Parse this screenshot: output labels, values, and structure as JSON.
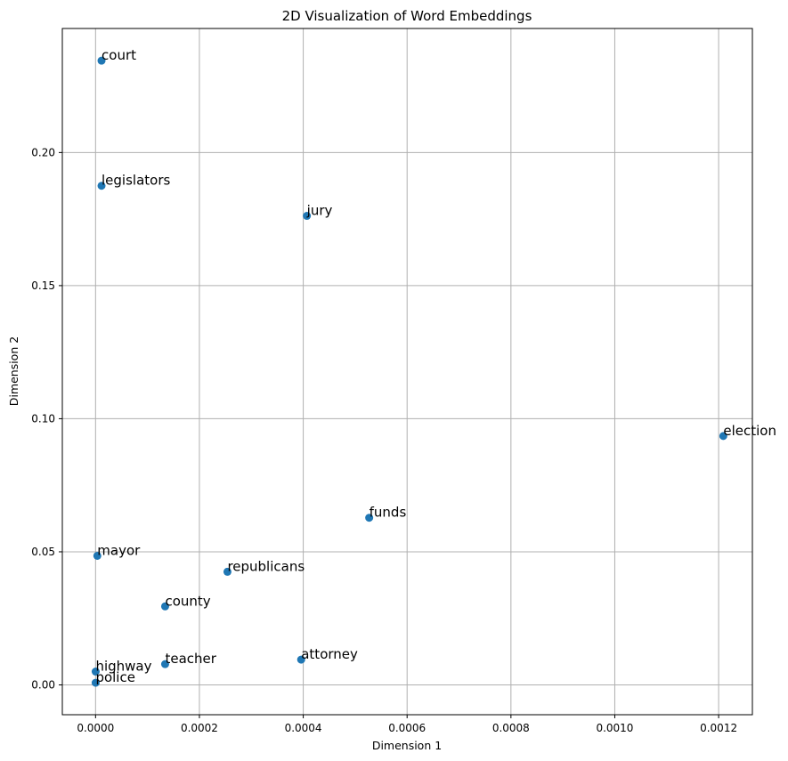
{
  "chart_data": {
    "type": "scatter",
    "title": "2D Visualization of Word Embeddings",
    "xlabel": "Dimension 1",
    "ylabel": "Dimension 2",
    "xlim": [
      -6.4e-05,
      0.001265
    ],
    "ylim": [
      -0.0112,
      0.2466
    ],
    "xticks": [
      0.0,
      0.0002,
      0.0004,
      0.0006,
      0.0008,
      0.001,
      0.0012
    ],
    "xtick_labels": [
      "0.0000",
      "0.0002",
      "0.0004",
      "0.0006",
      "0.0008",
      "0.0010",
      "0.0012"
    ],
    "yticks": [
      0.0,
      0.05,
      0.1,
      0.15,
      0.2
    ],
    "ytick_labels": [
      "0.00",
      "0.05",
      "0.10",
      "0.15",
      "0.20"
    ],
    "grid": true,
    "point_color": "#1f77b4",
    "points": [
      {
        "label": "court",
        "x": 1.15e-05,
        "y": 0.2345
      },
      {
        "label": "legislators",
        "x": 1.15e-05,
        "y": 0.1875
      },
      {
        "label": "jury",
        "x": 0.000407,
        "y": 0.1762
      },
      {
        "label": "election",
        "x": 0.001209,
        "y": 0.0935
      },
      {
        "label": "funds",
        "x": 0.000527,
        "y": 0.0628
      },
      {
        "label": "mayor",
        "x": 3.4e-06,
        "y": 0.0485
      },
      {
        "label": "republicans",
        "x": 0.000254,
        "y": 0.0425
      },
      {
        "label": "county",
        "x": 0.000134,
        "y": 0.0295
      },
      {
        "label": "attorney",
        "x": 0.000396,
        "y": 0.0095
      },
      {
        "label": "teacher",
        "x": 0.000134,
        "y": 0.0078
      },
      {
        "label": "highway",
        "x": 2e-07,
        "y": 0.005
      },
      {
        "label": "police",
        "x": 2e-07,
        "y": 0.0008
      }
    ]
  }
}
